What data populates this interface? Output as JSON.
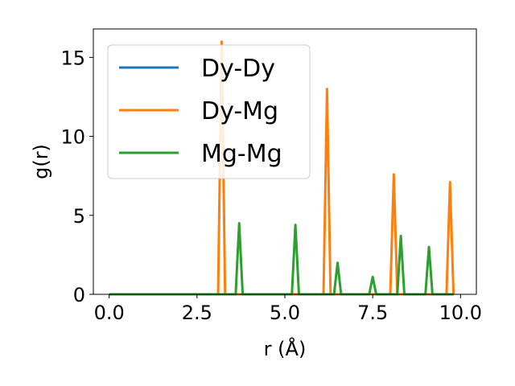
{
  "chart_data": {
    "type": "line",
    "xlabel": "r (Å)",
    "ylabel": "g(r)",
    "xlim": [
      -0.45,
      10.45
    ],
    "ylim": [
      0,
      16.8
    ],
    "xticks": [
      0.0,
      2.5,
      5.0,
      7.5,
      10.0
    ],
    "xtick_labels": [
      "0.0",
      "2.5",
      "5.0",
      "7.5",
      "10.0"
    ],
    "yticks": [
      0,
      5,
      10,
      15
    ],
    "ytick_labels": [
      "0",
      "5",
      "10",
      "15"
    ],
    "grid": false,
    "legend_position": "top-left",
    "series": [
      {
        "name": "Dy-Dy",
        "color": "#1f77b4",
        "x": [
          0.0,
          9.8
        ],
        "y": [
          0,
          0
        ]
      },
      {
        "name": "Dy-Mg",
        "color": "#ff7f0e",
        "x": [
          0.0,
          3.1,
          3.2,
          3.3,
          6.1,
          6.2,
          6.3,
          8.0,
          8.1,
          8.2,
          9.6,
          9.7,
          9.8
        ],
        "y": [
          0,
          0,
          16.0,
          0,
          0,
          13.0,
          0,
          0,
          7.6,
          0,
          0,
          7.1,
          0
        ]
      },
      {
        "name": "Mg-Mg",
        "color": "#2ca02c",
        "x": [
          0.0,
          3.6,
          3.7,
          3.8,
          5.2,
          5.3,
          5.4,
          6.4,
          6.5,
          6.6,
          7.4,
          7.5,
          7.6,
          8.2,
          8.3,
          8.4,
          9.0,
          9.1,
          9.2,
          9.8
        ],
        "y": [
          0,
          0,
          4.5,
          0,
          0,
          4.4,
          0,
          0,
          2.0,
          0,
          0,
          1.1,
          0,
          0,
          3.7,
          0,
          0,
          3.0,
          0,
          0
        ]
      }
    ]
  }
}
